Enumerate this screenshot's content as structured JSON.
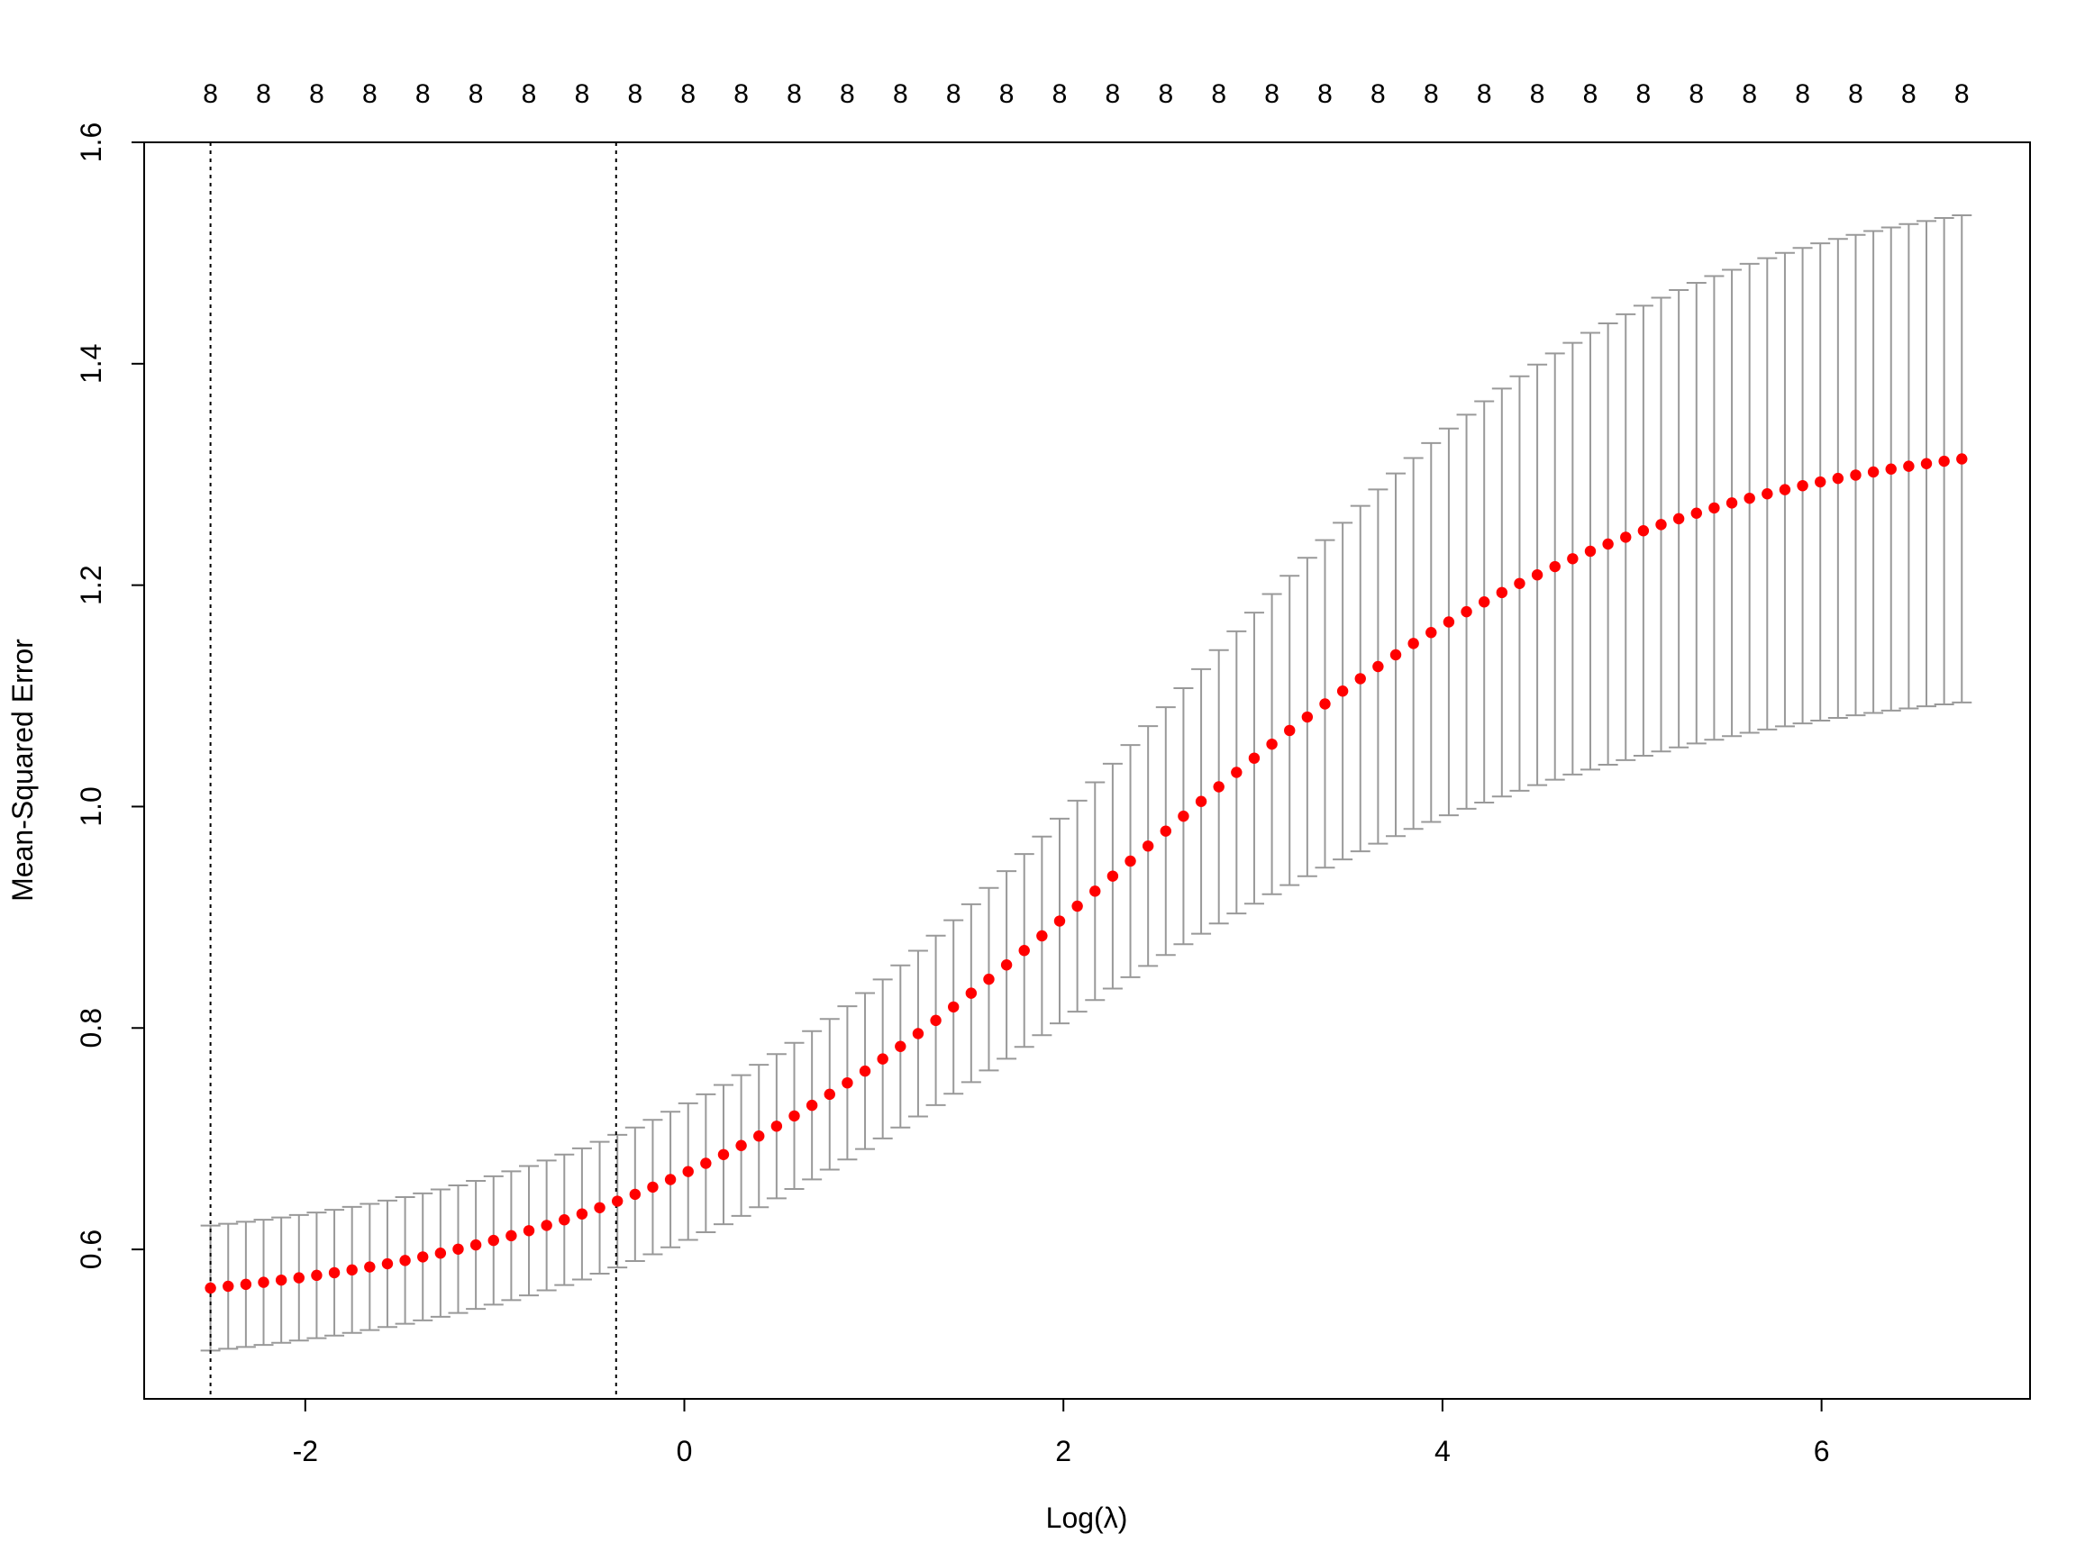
{
  "chart_data": {
    "type": "scatter",
    "xlabel": "Log(λ)",
    "ylabel": "Mean-Squared Error",
    "xlim": [
      -2.85,
      7.1
    ],
    "ylim": [
      0.465,
      1.6
    ],
    "x_ticks": [
      -2,
      0,
      2,
      4,
      6
    ],
    "x_tick_labels": [
      "-2",
      "0",
      "2",
      "4",
      "6"
    ],
    "y_ticks": [
      0.6,
      0.8,
      1.0,
      1.2,
      1.4,
      1.6
    ],
    "y_tick_labels": [
      "0.6",
      "0.8",
      "1.0",
      "1.2",
      "1.4",
      "1.6"
    ],
    "top_axis_ticks": [
      -2.5,
      -2.22,
      -1.94,
      -1.66,
      -1.38,
      -1.1,
      -0.82,
      -0.54,
      -0.26,
      0.02,
      0.3,
      0.58,
      0.86,
      1.14,
      1.42,
      1.7,
      1.98,
      2.26,
      2.54,
      2.82,
      3.1,
      3.38,
      3.66,
      3.94,
      4.22,
      4.5,
      4.78,
      5.06,
      5.34,
      5.62,
      5.9,
      6.18,
      6.46,
      6.74
    ],
    "top_axis_labels": [
      "8",
      "8",
      "8",
      "8",
      "8",
      "8",
      "8",
      "8",
      "8",
      "8",
      "8",
      "8",
      "8",
      "8",
      "8",
      "8",
      "8",
      "8",
      "8",
      "8",
      "8",
      "8",
      "8",
      "8",
      "8",
      "8",
      "8",
      "8",
      "8",
      "8",
      "8",
      "8",
      "8",
      "8"
    ],
    "vertical_lines": [
      -2.5,
      -0.36
    ],
    "series": [
      {
        "x_start": -2.5,
        "x_end": 6.74,
        "n_points": 100,
        "color": "#ff0000",
        "error_bar_color": "#999999",
        "curve": {
          "low": 0.541,
          "high": 1.345,
          "center": 2.3,
          "scale": 1.38
        },
        "se": {
          "left": 0.056,
          "right": 0.224,
          "center": 3.2,
          "scale": 0.95
        }
      }
    ]
  }
}
